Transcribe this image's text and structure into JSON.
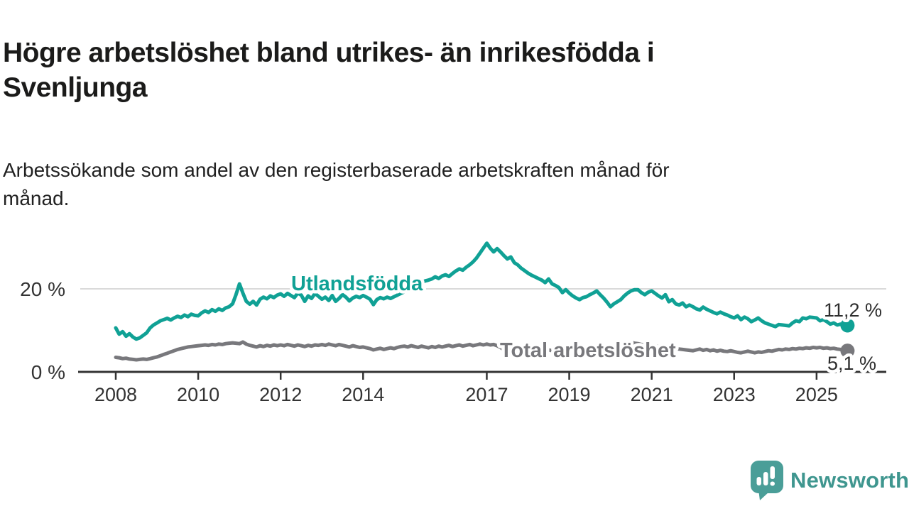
{
  "header": {
    "title": "Högre arbetslöshet bland utrikes- än inrikesfödda i\nSvenljunga",
    "subtitle": "Arbetssökande som andel av den registerbaserade arbetskraften månad för\nmånad."
  },
  "chart_data": {
    "type": "line",
    "title": "Högre arbetslöshet bland utrikes- än inrikesfödda i Svenljunga",
    "subtitle": "Arbetssökande som andel av den registerbaserade arbetskraften månad för månad.",
    "frequency": "monthly",
    "x_start": "2008-01",
    "x_end": "2025-10",
    "x_tick_years": [
      2008,
      2010,
      2012,
      2014,
      2017,
      2019,
      2021,
      2023,
      2025
    ],
    "x_tick_labels": [
      "2008",
      "2010",
      "2012",
      "2014",
      "2017",
      "2019",
      "2021",
      "2023",
      "2025"
    ],
    "y_tick_labels": [
      "0 %",
      "20 %"
    ],
    "y_tick_values": [
      0,
      20
    ],
    "ylim": [
      0,
      33
    ],
    "grid": "horizontal gridline at 20 % only",
    "legend_position": "inline labels on lines",
    "colors": {
      "utlandsfodda": "#10a195",
      "total": "#78787c",
      "axis": "#333333",
      "gridline": "#dadada",
      "end_label_text": "#2e2e2e"
    },
    "series": [
      {
        "name": "Utlandsfödda",
        "color": "#10a195",
        "end_label": "11,2 %",
        "end_value": 11.2,
        "values": [
          10.6,
          9.1,
          9.7,
          8.6,
          9.2,
          8.4,
          7.9,
          8.2,
          8.8,
          9.4,
          10.6,
          11.3,
          11.8,
          12.3,
          12.6,
          12.9,
          12.5,
          13.0,
          13.4,
          13.1,
          13.7,
          13.3,
          13.9,
          13.6,
          13.5,
          14.2,
          14.7,
          14.3,
          15.0,
          14.6,
          15.2,
          14.8,
          15.4,
          15.7,
          16.4,
          18.6,
          21.2,
          19.0,
          17.0,
          16.3,
          17.0,
          16.1,
          17.5,
          18.0,
          17.6,
          18.3,
          17.9,
          18.5,
          18.8,
          18.2,
          18.9,
          18.4,
          17.9,
          19.0,
          18.5,
          17.0,
          18.3,
          17.7,
          18.9,
          18.2,
          17.5,
          18.0,
          17.2,
          18.4,
          17.0,
          17.7,
          18.6,
          18.0,
          17.1,
          17.8,
          18.2,
          17.9,
          18.4,
          18.0,
          17.5,
          16.2,
          17.4,
          17.9,
          17.6,
          18.0,
          17.7,
          18.1,
          18.5,
          18.9,
          19.3,
          19.8,
          20.2,
          20.6,
          21.0,
          21.5,
          21.9,
          22.1,
          22.4,
          22.9,
          22.5,
          23.1,
          23.4,
          23.0,
          23.7,
          24.3,
          24.8,
          24.5,
          25.2,
          25.8,
          26.5,
          27.4,
          28.6,
          29.8,
          31.0,
          29.8,
          28.9,
          29.7,
          28.9,
          28.0,
          27.2,
          27.7,
          26.3,
          25.8,
          25.0,
          24.4,
          23.8,
          23.3,
          22.9,
          22.5,
          22.1,
          21.5,
          22.4,
          21.2,
          20.8,
          20.3,
          19.1,
          19.8,
          19.0,
          18.3,
          17.8,
          17.4,
          17.9,
          18.1,
          18.6,
          19.0,
          19.5,
          18.6,
          17.8,
          16.8,
          15.7,
          16.4,
          16.9,
          17.4,
          18.3,
          19.0,
          19.5,
          19.8,
          19.8,
          19.1,
          18.6,
          19.2,
          19.5,
          18.9,
          18.3,
          17.8,
          18.6,
          16.9,
          17.4,
          16.4,
          16.1,
          16.6,
          15.7,
          16.1,
          15.7,
          15.2,
          14.9,
          15.6,
          15.1,
          14.7,
          14.3,
          14.0,
          14.4,
          14.0,
          13.7,
          13.3,
          13.0,
          13.5,
          12.6,
          13.2,
          12.8,
          12.1,
          12.5,
          13.0,
          12.3,
          11.8,
          11.5,
          11.2,
          10.9,
          11.4,
          11.3,
          11.2,
          11.1,
          11.8,
          12.3,
          12.1,
          13.0,
          12.8,
          13.2,
          13.1,
          13.0,
          12.3,
          12.6,
          12.1,
          11.5,
          11.8,
          11.3,
          11.5,
          11.3,
          11.2
        ]
      },
      {
        "name": "Total arbetslöshet",
        "color": "#78787c",
        "end_label": "5,1 %",
        "end_value": 5.1,
        "values": [
          3.5,
          3.4,
          3.2,
          3.3,
          3.1,
          3.0,
          2.9,
          3.0,
          3.1,
          3.0,
          3.2,
          3.4,
          3.6,
          3.9,
          4.2,
          4.5,
          4.8,
          5.1,
          5.4,
          5.6,
          5.8,
          6.0,
          6.1,
          6.2,
          6.3,
          6.4,
          6.5,
          6.4,
          6.6,
          6.5,
          6.7,
          6.6,
          6.8,
          6.9,
          7.0,
          6.9,
          6.8,
          7.2,
          6.7,
          6.4,
          6.2,
          6.0,
          6.3,
          6.1,
          6.4,
          6.2,
          6.5,
          6.3,
          6.5,
          6.3,
          6.6,
          6.4,
          6.2,
          6.5,
          6.3,
          6.1,
          6.4,
          6.2,
          6.5,
          6.4,
          6.6,
          6.4,
          6.7,
          6.5,
          6.3,
          6.6,
          6.4,
          6.2,
          6.0,
          6.3,
          6.1,
          5.9,
          6.0,
          5.8,
          5.6,
          5.3,
          5.5,
          5.7,
          5.4,
          5.6,
          5.8,
          5.6,
          5.9,
          6.1,
          6.2,
          6.0,
          6.3,
          6.1,
          5.9,
          6.2,
          6.0,
          5.8,
          6.1,
          5.9,
          6.2,
          6.0,
          6.2,
          6.4,
          6.1,
          6.3,
          6.5,
          6.2,
          6.4,
          6.6,
          6.3,
          6.5,
          6.7,
          6.5,
          6.7,
          6.5,
          6.6,
          6.3,
          5.9,
          5.3,
          5.6,
          5.4,
          5.7,
          5.5,
          5.8,
          5.6,
          5.5,
          5.3,
          5.6,
          5.4,
          5.2,
          5.5,
          5.3,
          5.1,
          5.4,
          5.2,
          5.0,
          5.3,
          5.1,
          4.9,
          5.2,
          5.0,
          4.8,
          5.1,
          4.9,
          4.7,
          5.0,
          4.8,
          5.1,
          5.3,
          5.6,
          5.9,
          6.3,
          6.8,
          7.0,
          7.2,
          7.1,
          6.9,
          6.8,
          6.6,
          6.5,
          6.4,
          6.3,
          6.2,
          6.1,
          6.0,
          5.9,
          5.8,
          5.7,
          5.6,
          5.5,
          5.4,
          5.3,
          5.2,
          5.1,
          5.3,
          5.5,
          5.2,
          5.4,
          5.1,
          5.3,
          5.0,
          5.2,
          5.0,
          4.9,
          5.1,
          4.9,
          4.7,
          4.6,
          4.8,
          5.0,
          4.8,
          4.6,
          4.8,
          4.7,
          4.9,
          5.1,
          5.0,
          5.2,
          5.4,
          5.3,
          5.5,
          5.4,
          5.6,
          5.5,
          5.7,
          5.6,
          5.8,
          5.7,
          5.9,
          5.8,
          5.9,
          5.7,
          5.8,
          5.6,
          5.7,
          5.5,
          5.4,
          5.2,
          5.1
        ]
      }
    ]
  },
  "footer": {
    "brand": "Newsworthy",
    "brand_text_color": "#3f968f",
    "logo_icon": "bar-chart-speech-bubble-icon",
    "logo_icon_color": "#4a9e98"
  }
}
